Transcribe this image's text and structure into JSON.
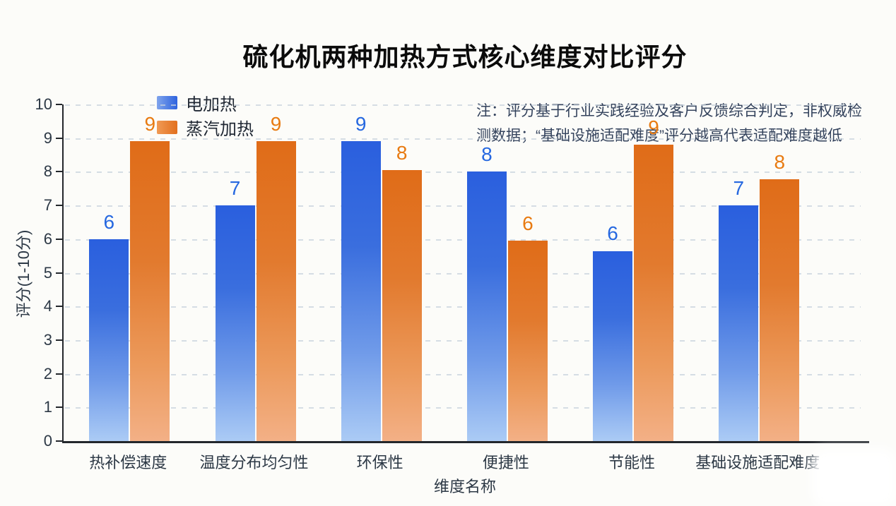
{
  "page": {
    "background": "#FCFCF9"
  },
  "title": "硫化机两种加热方式核心维度对比评分",
  "note": {
    "line1": "注：评分基于行业实践经验及客户反馈综合判定，非权威检",
    "line2": "测数据；“基础设施适配难度”评分越高代表适配难度越低"
  },
  "colors": {
    "blue_bar_top": "#2A5FDE",
    "blue_bar_bottom": "#ABCBF5",
    "orange_bar_top": "#E06C18",
    "orange_bar_bottom": "#F3B086",
    "blue_label": "#2668E0",
    "orange_label": "#E87B12",
    "axis": "#23272C",
    "gridline": "#C8D3DD",
    "note_text": "#33425C"
  },
  "chart_data": {
    "type": "bar",
    "title": "硫化机两种加热方式核心维度对比评分",
    "categories": [
      "热补偿速度",
      "温度分布均匀性",
      "环保性",
      "便捷性",
      "节能性",
      "基础设施适配难度"
    ],
    "series": [
      {
        "name": "电加热",
        "values": [
          6,
          7,
          9,
          8,
          6,
          7
        ],
        "bar_heights_drawn": [
          6.0,
          7.0,
          8.9,
          8.0,
          5.65,
          7.0
        ],
        "label_color": "#2668E0",
        "swatch_class": "swatch-blue",
        "bar_class": "bar-blue"
      },
      {
        "name": "蒸汽加热",
        "values": [
          9,
          9,
          8,
          6,
          9,
          8
        ],
        "bar_heights_drawn": [
          8.9,
          8.9,
          8.05,
          5.95,
          8.8,
          7.78
        ],
        "label_color": "#E87B12",
        "swatch_class": "swatch-orange",
        "bar_class": "bar-orange"
      }
    ],
    "xlabel": "维度名称",
    "ylabel": "评分(1-10分)",
    "ylim": [
      0,
      10
    ],
    "yticks": [
      0,
      1,
      2,
      3,
      4,
      5,
      6,
      7,
      8,
      9,
      10
    ],
    "grid": "horizontal dashed",
    "legend_position": "upper left"
  }
}
